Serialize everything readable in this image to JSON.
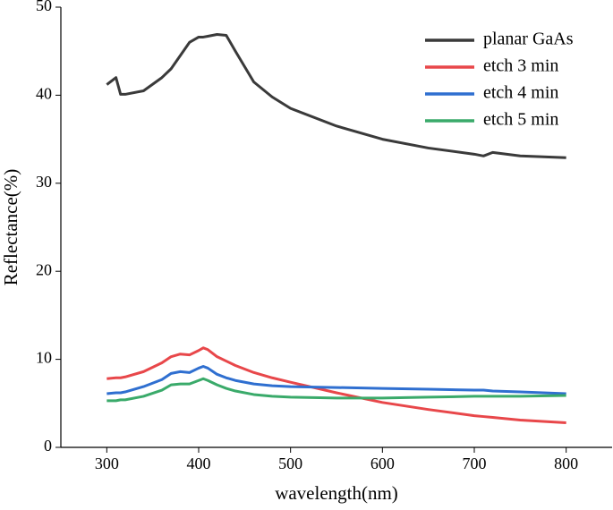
{
  "chart_data": {
    "type": "line",
    "xlabel": "wavelength(nm)",
    "ylabel": "Reflectance(%)",
    "x": [
      300,
      310,
      315,
      320,
      340,
      360,
      370,
      380,
      390,
      400,
      405,
      410,
      420,
      430,
      440,
      460,
      480,
      500,
      550,
      600,
      650,
      700,
      710,
      720,
      750,
      800
    ],
    "series": [
      {
        "name": "planar GaAs",
        "color": "#3a3a3a",
        "values": [
          41.2,
          42,
          40.1,
          40.1,
          40.5,
          42,
          43,
          44.5,
          46,
          46.6,
          46.6,
          46.7,
          46.9,
          46.8,
          45,
          41.5,
          39.8,
          38.5,
          36.5,
          35,
          34,
          33.3,
          33.1,
          33.5,
          33.1,
          32.9
        ]
      },
      {
        "name": "etch 3 min",
        "color": "#e8474a",
        "values": [
          7.8,
          7.9,
          7.9,
          8,
          8.6,
          9.6,
          10.3,
          10.6,
          10.5,
          11,
          11.3,
          11.1,
          10.3,
          9.8,
          9.3,
          8.5,
          7.9,
          7.4,
          6.2,
          5.1,
          4.3,
          3.6,
          3.5,
          3.4,
          3.1,
          2.8
        ]
      },
      {
        "name": "etch 4 min",
        "color": "#2f6fd0",
        "values": [
          6.1,
          6.2,
          6.2,
          6.3,
          6.9,
          7.7,
          8.4,
          8.6,
          8.5,
          9,
          9.2,
          9,
          8.3,
          7.9,
          7.6,
          7.2,
          7,
          6.9,
          6.8,
          6.7,
          6.6,
          6.5,
          6.5,
          6.4,
          6.3,
          6.1
        ]
      },
      {
        "name": "etch 5 min",
        "color": "#3aaa6a",
        "values": [
          5.3,
          5.3,
          5.4,
          5.4,
          5.8,
          6.5,
          7.1,
          7.2,
          7.2,
          7.6,
          7.8,
          7.6,
          7.1,
          6.7,
          6.4,
          6,
          5.8,
          5.7,
          5.6,
          5.6,
          5.7,
          5.8,
          5.8,
          5.8,
          5.8,
          5.9
        ]
      }
    ],
    "xlim": [
      250,
      850
    ],
    "xticks": [
      300,
      400,
      500,
      600,
      700,
      800
    ],
    "ylim": [
      0,
      50
    ],
    "yticks": [
      0,
      10,
      20,
      30,
      40,
      50
    ],
    "legend": "upper right"
  }
}
